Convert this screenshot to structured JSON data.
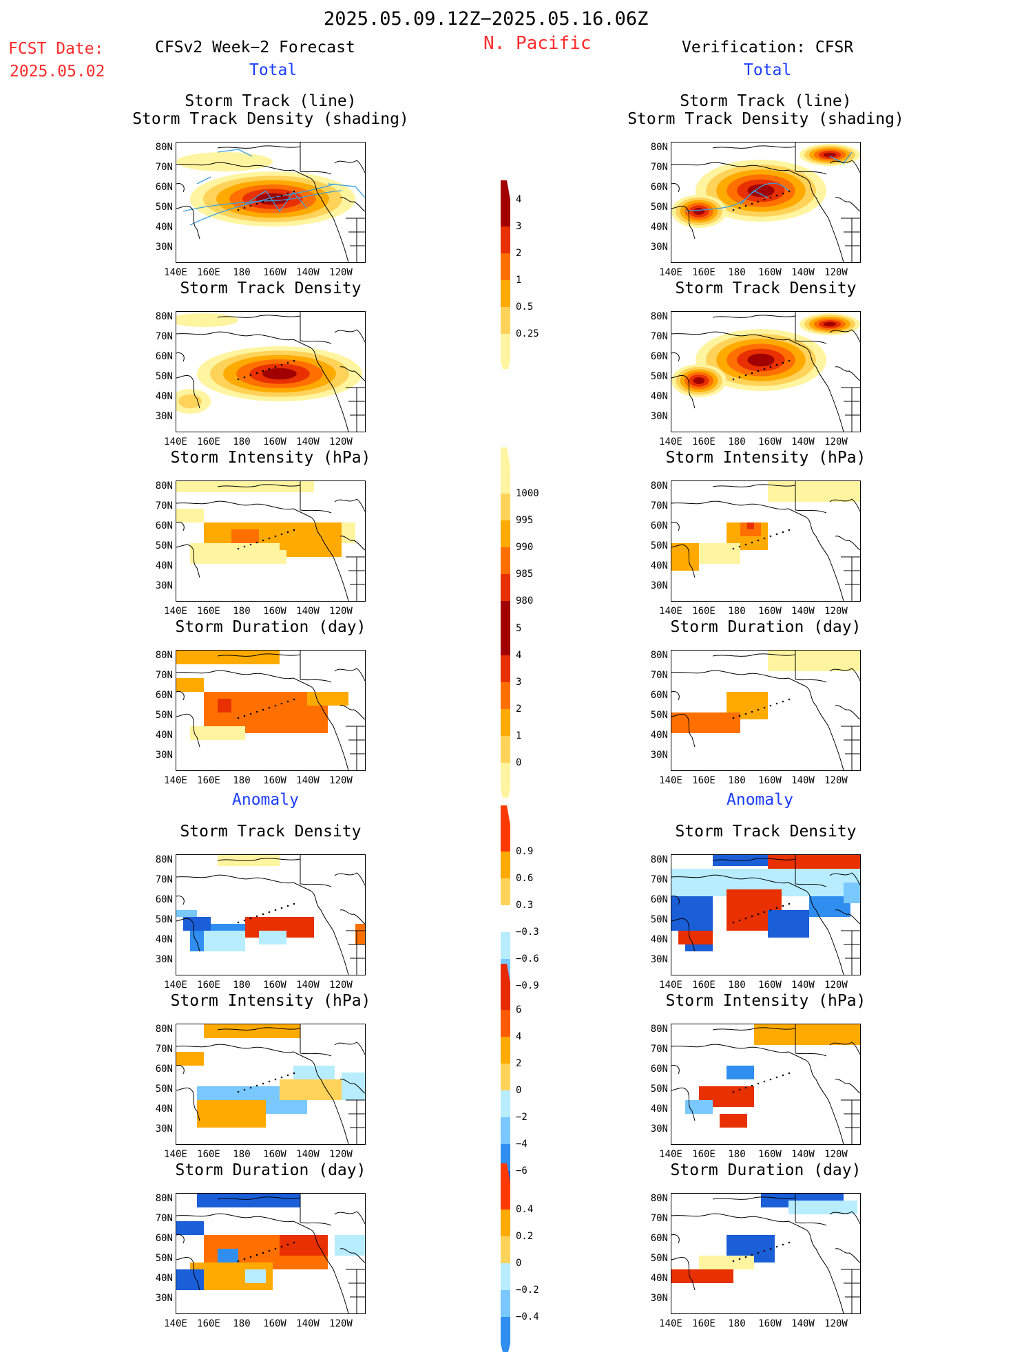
{
  "header": {
    "date_range": "2025.05.09.12Z−2025.05.16.06Z",
    "region": "N. Pacific",
    "fcst_label": "FCST Date:",
    "fcst_date": "2025.05.02",
    "left_title": "CFSv2 Week−2 Forecast",
    "right_title": "Verification: CFSR",
    "total_label": "Total",
    "anomaly_label": "Anomaly"
  },
  "panel_titles": {
    "track_line": "Storm Track (line)",
    "track_density_shading": "Storm Track Density (shading)",
    "track_density": "Storm Track Density",
    "intensity": "Storm Intensity (hPa)",
    "duration": "Storm Duration (day)"
  },
  "axes": {
    "lat_labels": [
      "80N",
      "70N",
      "60N",
      "50N",
      "40N",
      "30N"
    ],
    "lon_labels": [
      "140E",
      "160E",
      "180",
      "160W",
      "140W",
      "120W"
    ]
  },
  "colorbars": {
    "density_total": {
      "levels": [
        "4",
        "3",
        "2",
        "1",
        "0.5",
        "0.25"
      ]
    },
    "intensity_total": {
      "levels": [
        "1000",
        "995",
        "990",
        "985",
        "980"
      ]
    },
    "duration_total": {
      "levels": [
        "5",
        "4",
        "3",
        "2",
        "1",
        "0"
      ]
    },
    "density_anom": {
      "levels": [
        "0.9",
        "0.6",
        "0.3",
        "−0.3",
        "−0.6",
        "−0.9"
      ]
    },
    "intensity_anom": {
      "levels": [
        "6",
        "4",
        "2",
        "0",
        "−2",
        "−4",
        "−6"
      ]
    },
    "duration_anom": {
      "levels": [
        "0.4",
        "0.2",
        "0",
        "−0.2",
        "−0.4"
      ]
    }
  },
  "colors": {
    "warm_light": "#fff5a0",
    "warm_1": "#ffd35a",
    "warm_2": "#ffaa00",
    "warm_3": "#ff7000",
    "warm_4": "#e83000",
    "warm_5": "#a00000",
    "cool_light": "#b8ecff",
    "cool_1": "#79c8ff",
    "cool_2": "#2f8ef0",
    "cool_3": "#1a5ed8",
    "track_line": "#3aa0e0"
  }
}
